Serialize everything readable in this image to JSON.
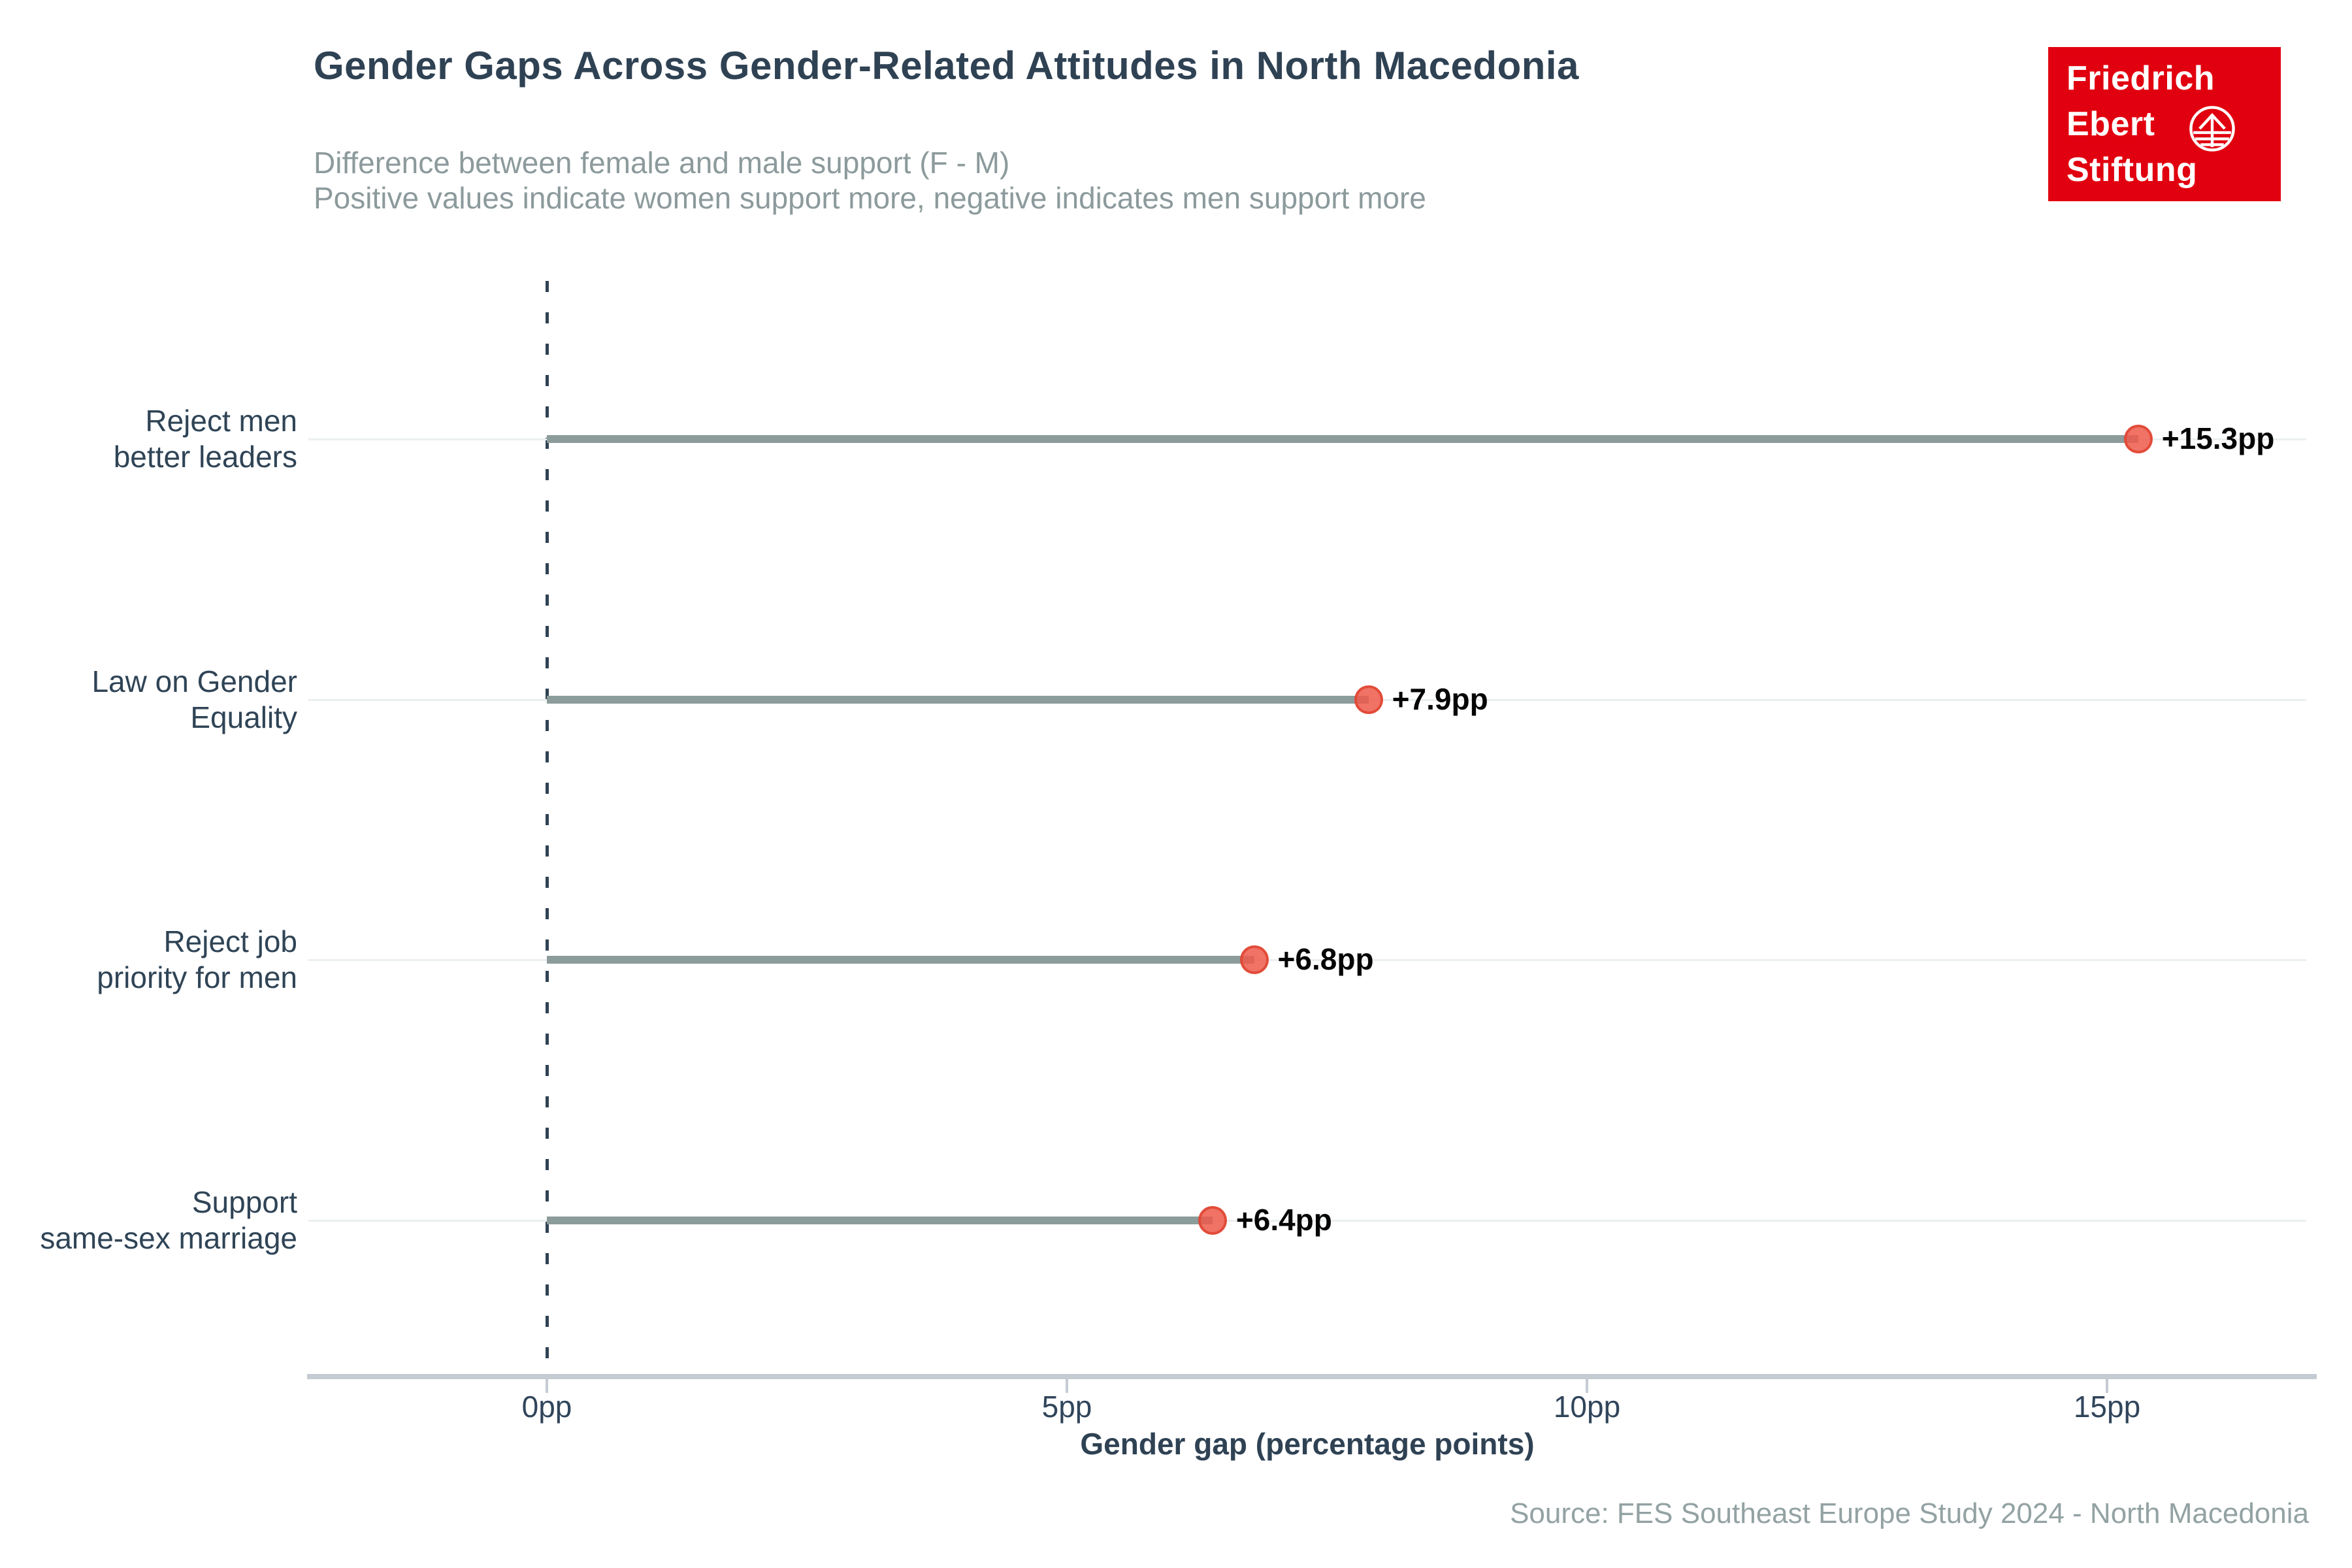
{
  "header": {
    "title": "Gender Gaps Across Gender-Related Attitudes in North Macedonia",
    "subtitle_line1": "Difference between female and male support (F - M)",
    "subtitle_line2": "Positive values indicate women support more, negative indicates men support more"
  },
  "logo": {
    "line1": "Friedrich",
    "line2": "Ebert",
    "line3": "Stiftung",
    "background_color": "#E1000F",
    "text_color": "#FFFFFF",
    "icon": "globe-arrow-icon"
  },
  "chart_data": {
    "type": "scatter",
    "variant": "horizontal-lollipop",
    "title": "Gender Gaps Across Gender-Related Attitudes in North Macedonia",
    "categories": [
      [
        "Reject men",
        "better leaders"
      ],
      [
        "Law on Gender",
        "Equality"
      ],
      [
        "Reject job",
        "priority for men"
      ],
      [
        "Support",
        "same-sex marriage"
      ]
    ],
    "values": [
      15.3,
      7.9,
      6.8,
      6.4
    ],
    "value_labels": [
      "+15.3pp",
      "+7.9pp",
      "+6.8pp",
      "+6.4pp"
    ],
    "xlabel": "Gender gap (percentage points)",
    "ylabel": "",
    "x_ticks": [
      0,
      5,
      10,
      15
    ],
    "x_tick_labels": [
      "0pp",
      "5pp",
      "10pp",
      "15pp"
    ],
    "xlim": [
      -2.3,
      17.0
    ],
    "baseline_value": 0,
    "baseline_style": "dashed",
    "grid": "horizontal row gridlines",
    "legend": "none",
    "colors": {
      "dot_fill": "#ED5A4B",
      "dot_border": "#E14632",
      "stem": "#8C9C9B",
      "baseline": "#304254",
      "gridline": "#EBEFF0",
      "axis": "#C5CBD2",
      "category_text": "#2F4456",
      "value_text": "#050505"
    }
  },
  "footer": {
    "source": "Source: FES Southeast Europe Study 2024 - North Macedonia"
  }
}
